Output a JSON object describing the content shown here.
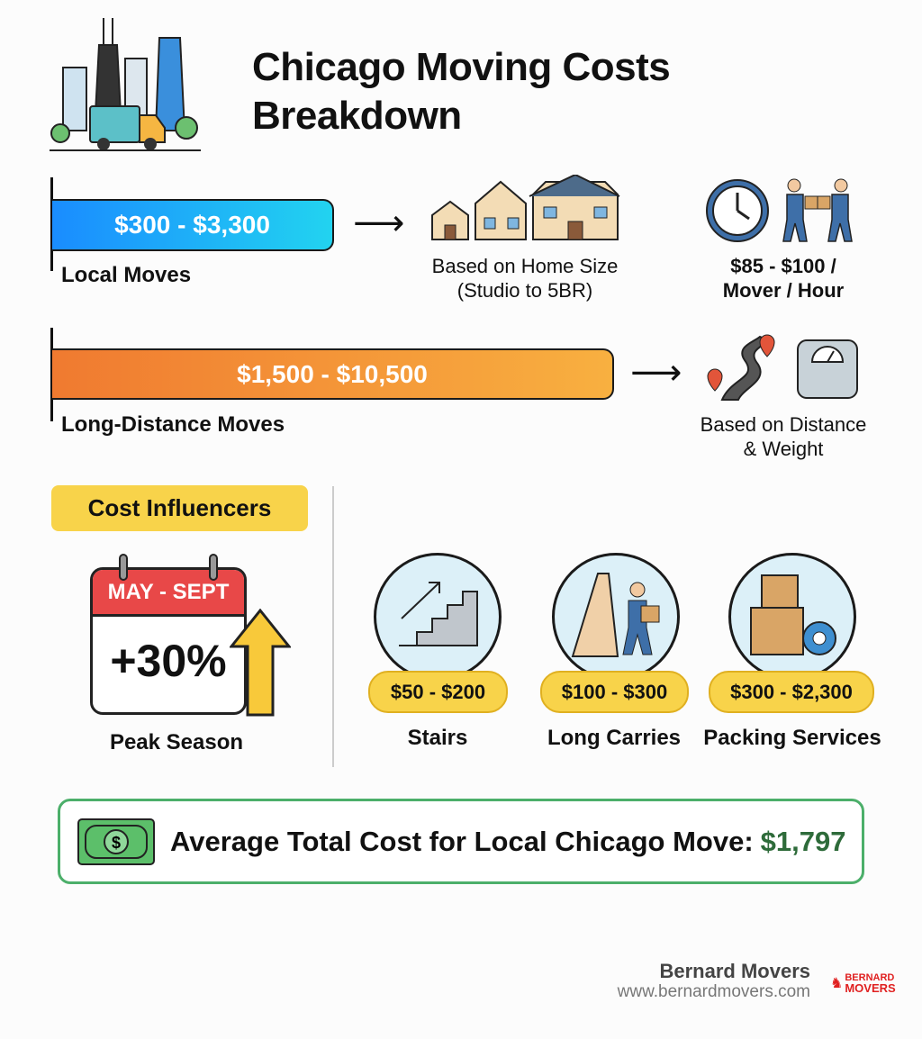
{
  "title": [
    "Chicago Moving Costs",
    "Breakdown"
  ],
  "local": {
    "range": "$300 - $3,300",
    "label": "Local Moves",
    "basis": [
      "Based on Home Size",
      "(Studio to 5BR)"
    ],
    "rate": [
      "$85 - $100 /",
      "Mover / Hour"
    ],
    "color_start": "#1a8cff",
    "color_end": "#22d3f0"
  },
  "long_distance": {
    "range": "$1,500 - $10,500",
    "label": "Long-Distance Moves",
    "basis": [
      "Based on Distance",
      "& Weight"
    ],
    "color_start": "#f07a30",
    "color_end": "#f8b040"
  },
  "influencers": {
    "heading": "Cost Influencers",
    "peak": {
      "months": "MAY - SEPT",
      "increase": "+30%",
      "label": "Peak Season"
    },
    "items": [
      {
        "price": "$50 - $200",
        "label": "Stairs",
        "icon": "stairs-icon"
      },
      {
        "price": "$100 - $300",
        "label": "Long Carries",
        "icon": "mover-carrying-box-icon"
      },
      {
        "price": "$300 - $2,300",
        "label": "Packing Services",
        "icon": "boxes-tape-icon"
      }
    ]
  },
  "average": {
    "text": "Average Total Cost for Local Chicago Move:",
    "value": "$1,797",
    "color": "#2e6b3a"
  },
  "footer": {
    "company": "Bernard Movers",
    "url": "www.bernardmovers.com",
    "logo": [
      "BERNARD",
      "MOVERS"
    ]
  }
}
